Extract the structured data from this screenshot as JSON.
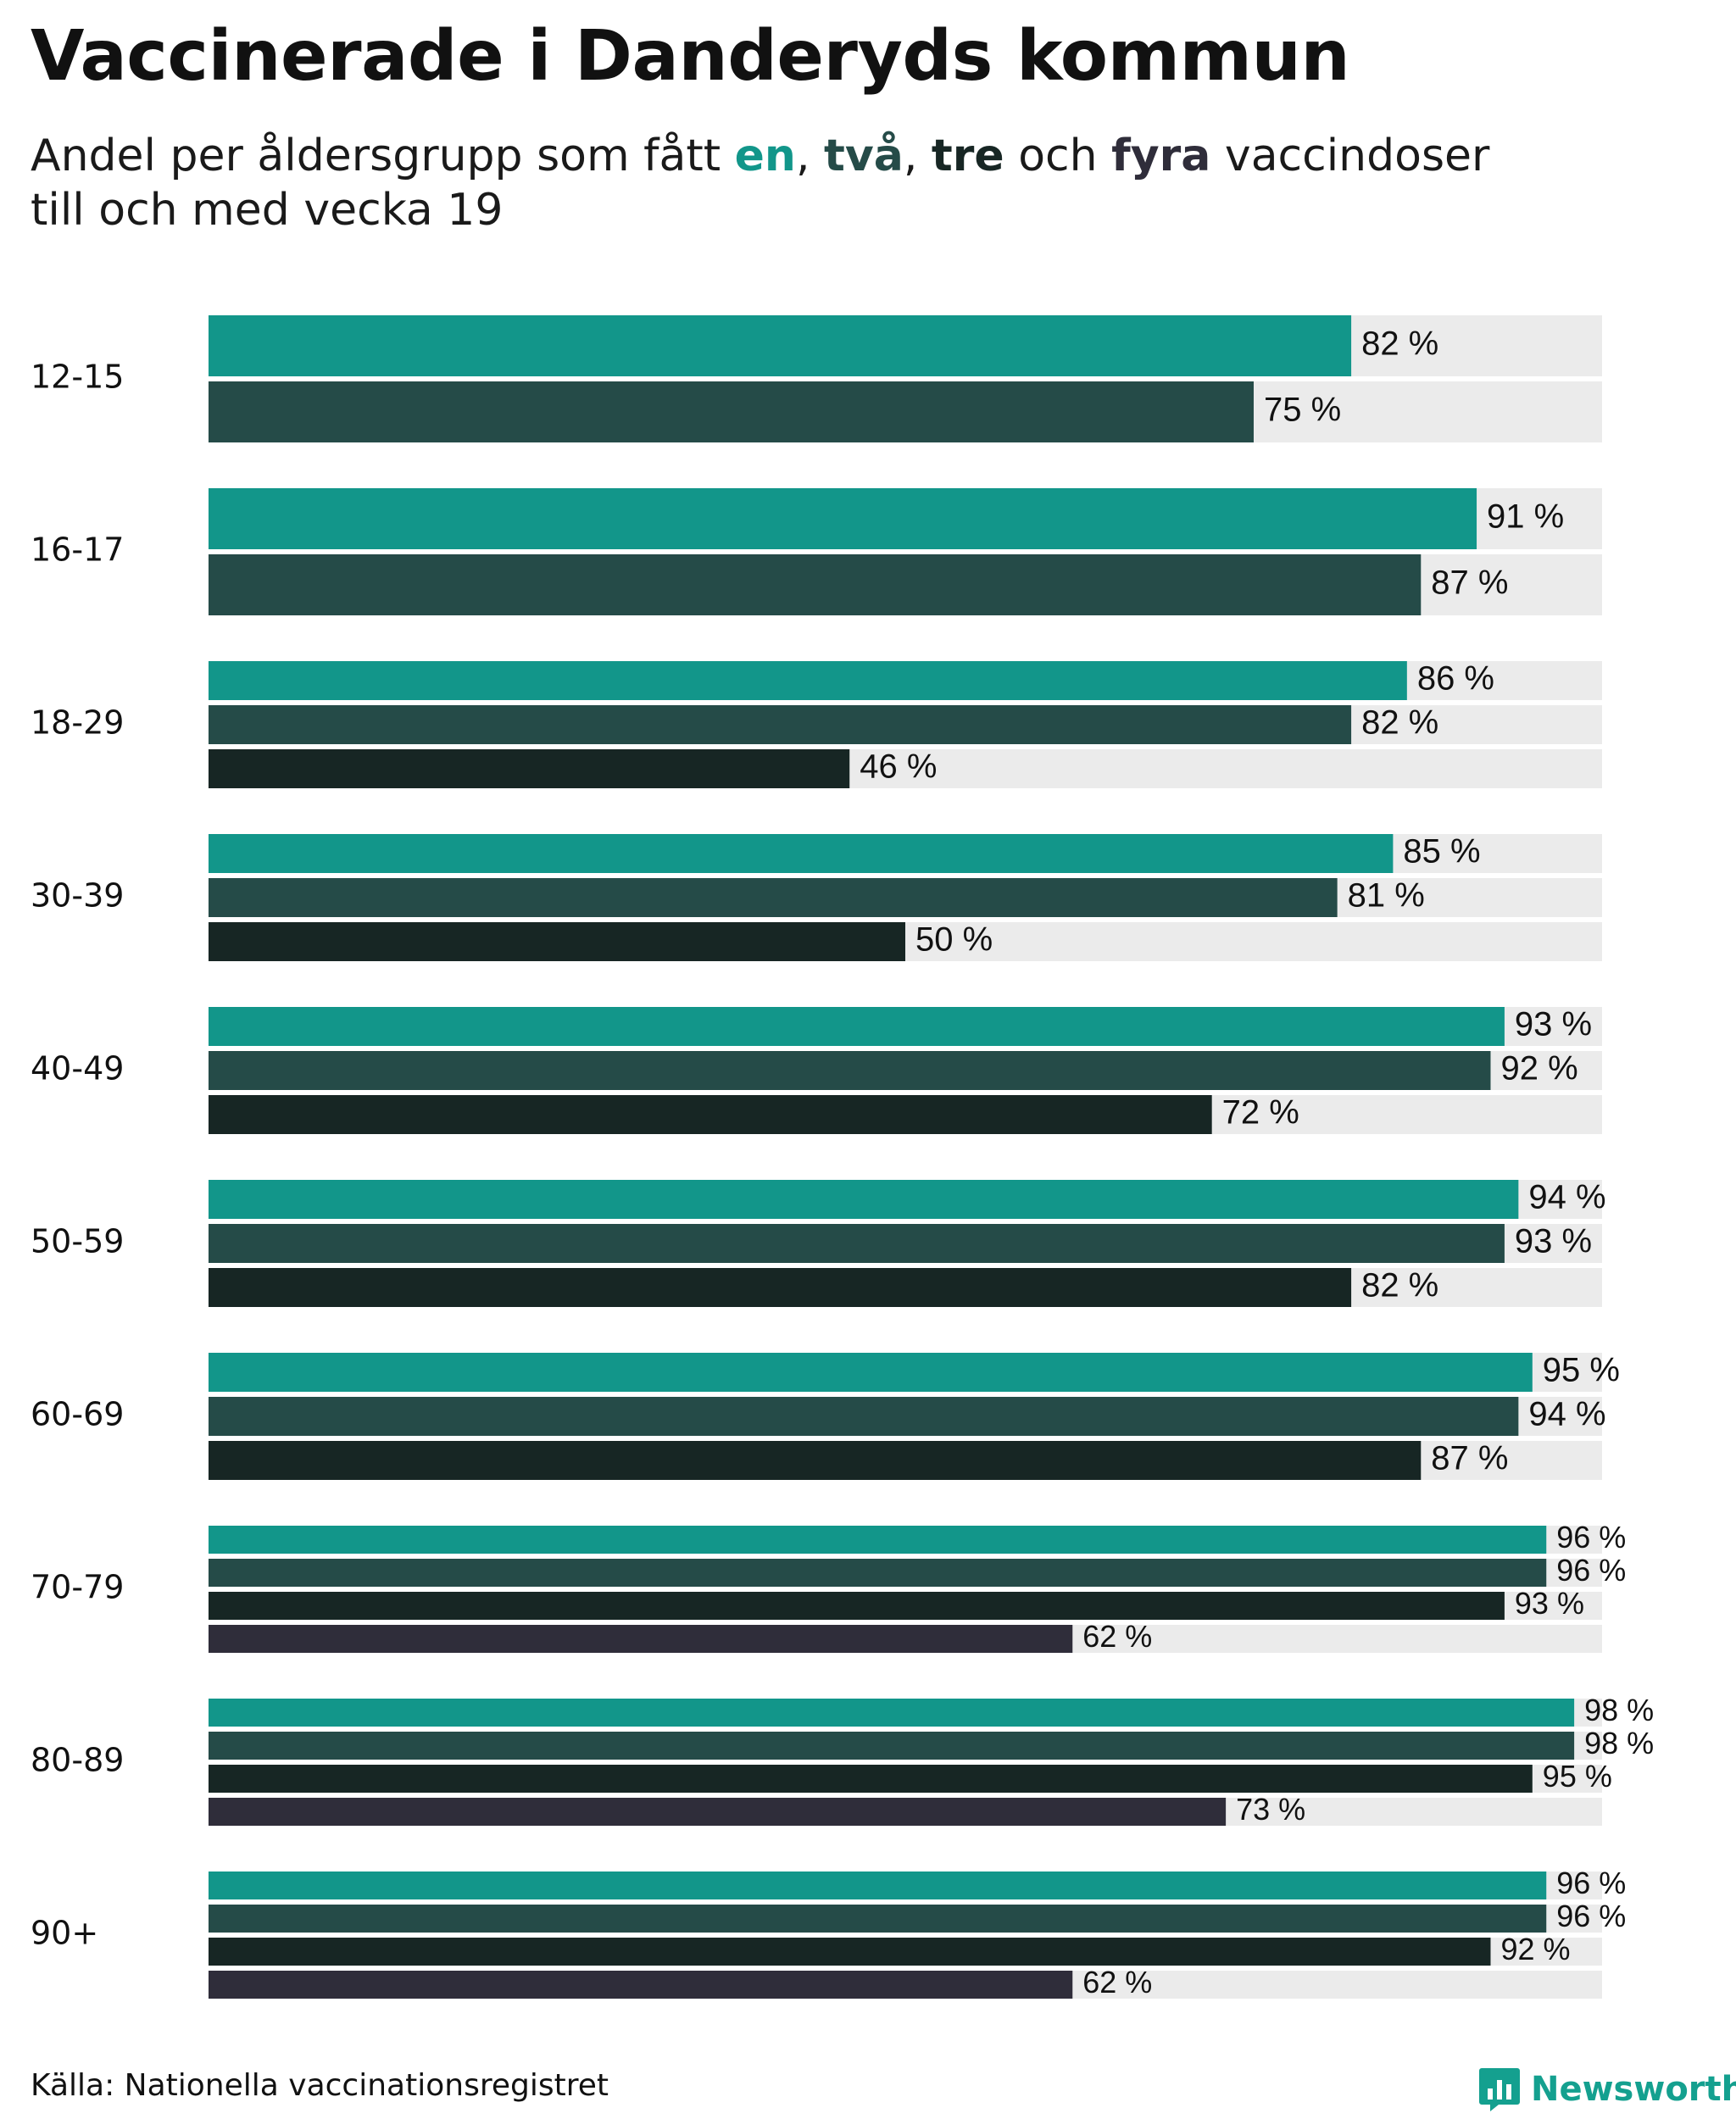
{
  "title": "Vaccinerade i Danderyds kommun",
  "subtitle": {
    "prefix": "Andel per åldersgrupp som fått ",
    "dose1": "en",
    "sep1": ", ",
    "dose2": "två",
    "sep2": ", ",
    "dose3": "tre",
    "conj": " och ",
    "dose4": "fyra",
    "suffix": " vaccindoser",
    "line2": "till och med vecka 19"
  },
  "colors": {
    "dose1": "#12968a",
    "dose2": "#254b48",
    "dose3": "#172624",
    "dose4": "#2f2d3a",
    "track": "#ebebeb"
  },
  "source": "Källa: Nationella vaccinationsregistret",
  "brand": "Newsworthy",
  "brand_icon": "bar-chart-icon",
  "chart_data": {
    "type": "bar",
    "orientation": "horizontal",
    "xlim": [
      0,
      100
    ],
    "value_suffix": " %",
    "categories": [
      "12-15",
      "16-17",
      "18-29",
      "30-39",
      "40-49",
      "50-59",
      "60-69",
      "70-79",
      "80-89",
      "90+"
    ],
    "series": [
      {
        "name": "en",
        "values": [
          82,
          91,
          86,
          85,
          93,
          94,
          95,
          96,
          98,
          96
        ]
      },
      {
        "name": "två",
        "values": [
          75,
          87,
          82,
          81,
          92,
          93,
          94,
          96,
          98,
          96
        ]
      },
      {
        "name": "tre",
        "values": [
          null,
          null,
          46,
          50,
          72,
          82,
          87,
          93,
          95,
          92
        ]
      },
      {
        "name": "fyra",
        "values": [
          null,
          null,
          null,
          null,
          null,
          null,
          null,
          62,
          73,
          62
        ]
      }
    ],
    "value_labels": [
      [
        "82 %",
        "75 %"
      ],
      [
        "91 %",
        "87 %"
      ],
      [
        "86 %",
        "82 %",
        "46 %"
      ],
      [
        "85 %",
        "81 %",
        "50 %"
      ],
      [
        "93 %",
        "92 %",
        "72 %"
      ],
      [
        "94 %",
        "93 %",
        "82 %"
      ],
      [
        "95 %",
        "94 %",
        "87 %"
      ],
      [
        "96 %",
        "96 %",
        "93 %",
        "62 %"
      ],
      [
        "98 %",
        "98 %",
        "95 %",
        "73 %"
      ],
      [
        "96 %",
        "96 %",
        "92 %",
        "62 %"
      ]
    ]
  }
}
